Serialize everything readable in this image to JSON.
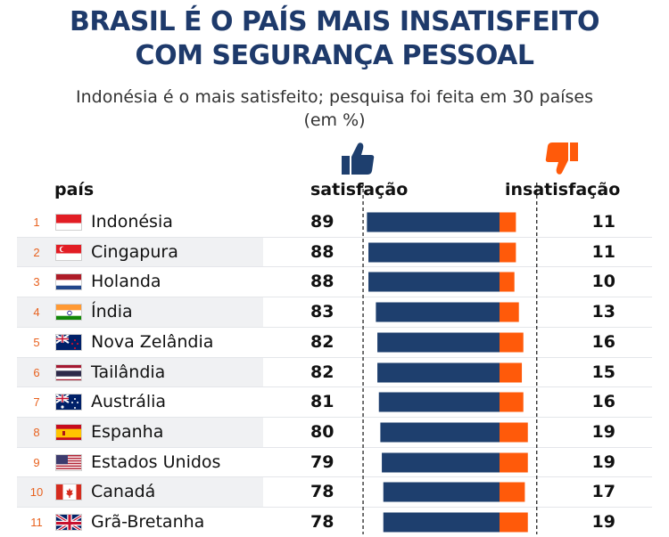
{
  "header": {
    "title_line1": "BRASIL É O PAÍS MAIS INSATISFEITO",
    "title_line2": "COM SEGURANÇA PESSOAL",
    "subtitle_line1": "Indonésia é o mais satisfeito; pesquisa foi feita em 30 países",
    "subtitle_line2": "(em %)"
  },
  "columns": {
    "country": "país",
    "satisfaction": "satisfação",
    "dissatisfaction": "insatisfação"
  },
  "icons": {
    "satisfaction": "thumbs-up-icon",
    "dissatisfaction": "thumbs-down-icon"
  },
  "colors": {
    "satisfaction": "#1e3f6e",
    "dissatisfaction": "#ff5a0a",
    "title": "#1e3a6b",
    "rank": "#e8621f"
  },
  "chart_data": {
    "type": "bar",
    "categories": [
      "Indonésia",
      "Cingapura",
      "Holanda",
      "Índia",
      "Nova Zelândia",
      "Tailândia",
      "Austrália",
      "Espanha",
      "Estados Unidos",
      "Canadá",
      "Grã-Bretanha"
    ],
    "ranks": [
      1,
      2,
      3,
      4,
      5,
      6,
      7,
      8,
      9,
      10,
      11
    ],
    "flags": [
      "indonesia-flag",
      "singapore-flag",
      "netherlands-flag",
      "india-flag",
      "new-zealand-flag",
      "thailand-flag",
      "australia-flag",
      "spain-flag",
      "usa-flag",
      "canada-flag",
      "uk-flag"
    ],
    "series": [
      {
        "name": "satisfação",
        "values": [
          89,
          88,
          88,
          83,
          82,
          82,
          81,
          80,
          79,
          78,
          78
        ]
      },
      {
        "name": "insatisfação",
        "values": [
          11,
          11,
          10,
          13,
          16,
          15,
          16,
          19,
          19,
          17,
          19
        ]
      }
    ],
    "stacked": "diverging",
    "ylim": [
      0,
      100
    ]
  }
}
